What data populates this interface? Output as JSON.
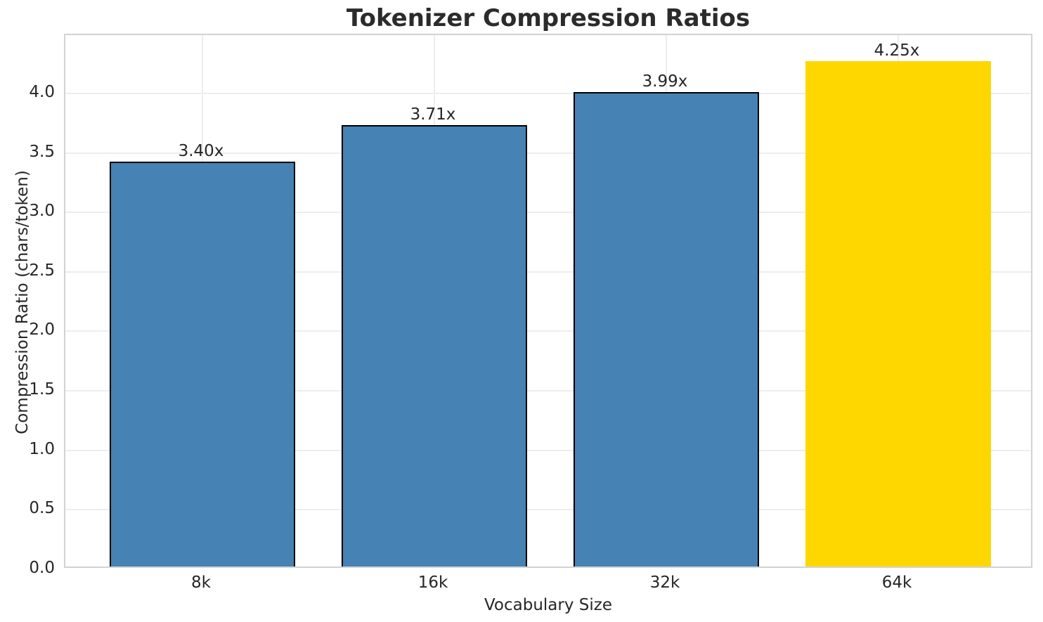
{
  "chart_data": {
    "type": "bar",
    "title": "Tokenizer Compression Ratios",
    "xlabel": "Vocabulary Size",
    "ylabel": "Compression Ratio (chars/token)",
    "categories": [
      "8k",
      "16k",
      "32k",
      "64k"
    ],
    "values": [
      3.4,
      3.71,
      3.99,
      4.25
    ],
    "bar_labels": [
      "3.40x",
      "3.71x",
      "3.99x",
      "4.25x"
    ],
    "bar_colors": [
      "#4682B4",
      "#4682B4",
      "#4682B4",
      "#FFD700"
    ],
    "bar_edge_colors": [
      "#000000",
      "#000000",
      "#000000",
      "none"
    ],
    "highlighted_category": "64k",
    "ylim": [
      0,
      4.49
    ],
    "yticks": [
      0.0,
      0.5,
      1.0,
      1.5,
      2.0,
      2.5,
      3.0,
      3.5,
      4.0
    ],
    "ytick_labels": [
      "0.0",
      "0.5",
      "1.0",
      "1.5",
      "2.0",
      "2.5",
      "3.0",
      "3.5",
      "4.0"
    ],
    "grid": true,
    "legend_position": "none"
  },
  "colors": {
    "bar_blue": "#4682B4",
    "bar_gold": "#FFD700",
    "bar_edge": "#000000",
    "grid": "#EDEDED",
    "spine": "#D2D2D2",
    "text": "#262626"
  }
}
